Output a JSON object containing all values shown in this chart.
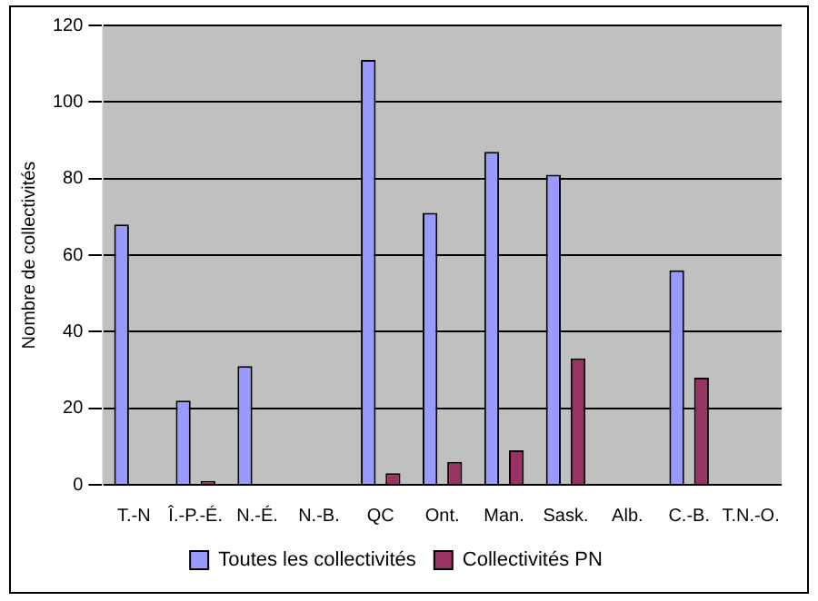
{
  "chart_data": {
    "type": "bar",
    "ylabel": "Nombre de collectivités",
    "categories": [
      "T.-N",
      "Î.-P.-É.",
      "N.-É.",
      "N.-B.",
      "QC",
      "Ont.",
      "Man.",
      "Sask.",
      "Alb.",
      "C.-B.",
      "T.N.-O."
    ],
    "series": [
      {
        "name": "Toutes les collectivités",
        "color": "#9999ff",
        "values": [
          68,
          22,
          31,
          0,
          111,
          71,
          87,
          81,
          0,
          56,
          0
        ]
      },
      {
        "name": "Collectivités PN",
        "color": "#993366",
        "values": [
          0,
          1,
          0,
          0,
          3,
          6,
          9,
          33,
          0,
          28,
          0
        ]
      }
    ],
    "ylim": [
      0,
      120
    ],
    "yticks": [
      0,
      20,
      40,
      60,
      80,
      100,
      120
    ],
    "grid": "y",
    "legend": "bottom"
  }
}
